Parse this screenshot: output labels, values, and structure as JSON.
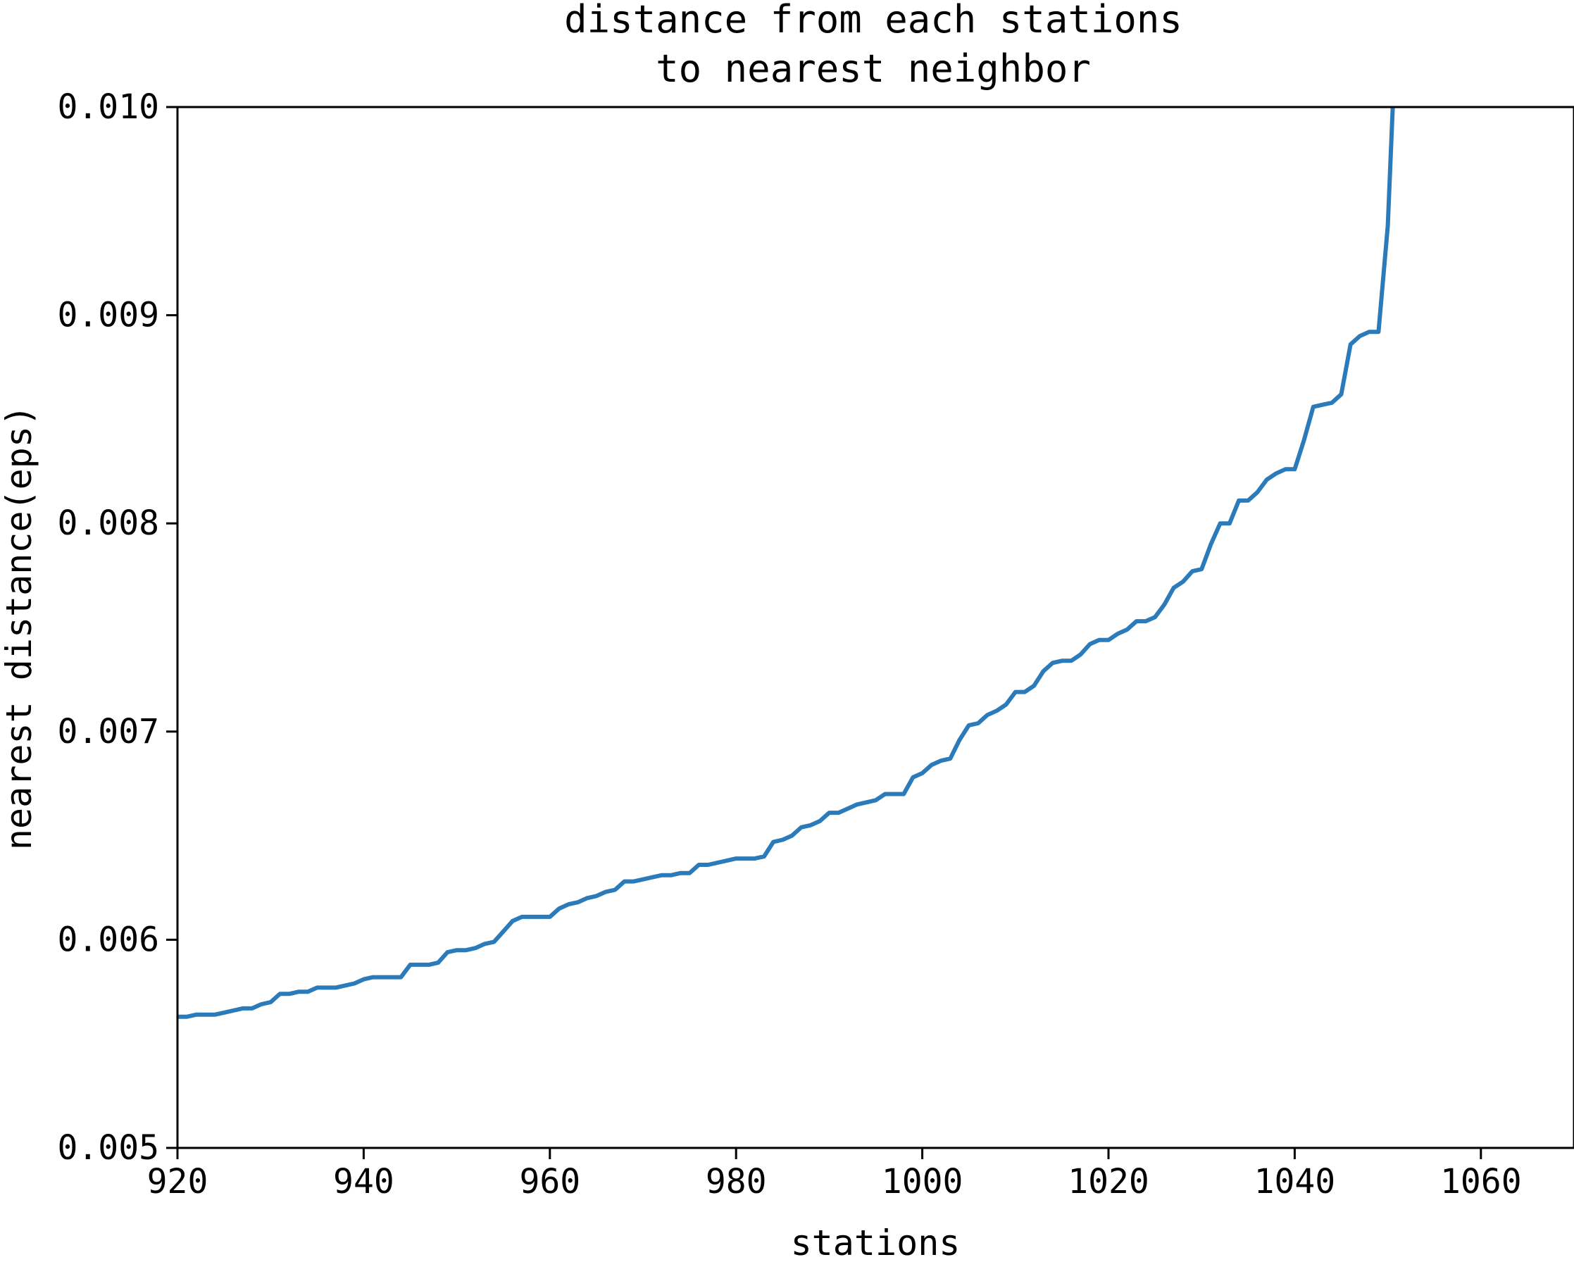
{
  "chart_data": {
    "type": "line",
    "title_lines": [
      "distance from each stations",
      "to nearest neighbor"
    ],
    "xlabel": "stations",
    "ylabel": "nearest distance(eps)",
    "xlim": [
      920,
      1070
    ],
    "ylim": [
      0.005,
      0.01
    ],
    "xticks": [
      920,
      940,
      960,
      980,
      1000,
      1020,
      1040,
      1060
    ],
    "xtick_labels": [
      "920",
      "940",
      "960",
      "980",
      "1000",
      "1020",
      "1040",
      "1060"
    ],
    "yticks": [
      0.005,
      0.006,
      0.007,
      0.008,
      0.009,
      0.01
    ],
    "ytick_labels": [
      "0.005",
      "0.006",
      "0.007",
      "0.008",
      "0.009",
      "0.010"
    ],
    "grid": false,
    "line_color": "#2b7bba",
    "series": [
      {
        "x": [
          920,
          921,
          922,
          923,
          924,
          925,
          926,
          927,
          928,
          929,
          930,
          931,
          932,
          933,
          934,
          935,
          936,
          937,
          938,
          939,
          940,
          941,
          942,
          943,
          944,
          945,
          946,
          947,
          948,
          949,
          950,
          951,
          952,
          953,
          954,
          955,
          956,
          957,
          958,
          959,
          960,
          961,
          962,
          963,
          964,
          965,
          966,
          967,
          968,
          969,
          970,
          971,
          972,
          973,
          974,
          975,
          976,
          977,
          978,
          979,
          980,
          981,
          982,
          983,
          984,
          985,
          986,
          987,
          988,
          989,
          990,
          991,
          992,
          993,
          994,
          995,
          996,
          997,
          998,
          999,
          1000,
          1001,
          1002,
          1003,
          1004,
          1005,
          1006,
          1007,
          1008,
          1009,
          1010,
          1011,
          1012,
          1013,
          1014,
          1015,
          1016,
          1017,
          1018,
          1019,
          1020,
          1021,
          1022,
          1023,
          1024,
          1025,
          1026,
          1027,
          1028,
          1029,
          1030,
          1031,
          1032,
          1033,
          1034,
          1035,
          1036,
          1037,
          1038,
          1039,
          1040,
          1041,
          1042,
          1043,
          1044,
          1045,
          1046,
          1047,
          1048,
          1049,
          1050,
          1051
        ],
        "values": [
          0.00563,
          0.00563,
          0.00564,
          0.00564,
          0.00564,
          0.00565,
          0.00566,
          0.00567,
          0.00567,
          0.00569,
          0.0057,
          0.00574,
          0.00574,
          0.00575,
          0.00575,
          0.00577,
          0.00577,
          0.00577,
          0.00578,
          0.00579,
          0.00581,
          0.00582,
          0.00582,
          0.00582,
          0.00582,
          0.00588,
          0.00588,
          0.00588,
          0.00589,
          0.00594,
          0.00595,
          0.00595,
          0.00596,
          0.00598,
          0.00599,
          0.00604,
          0.00609,
          0.00611,
          0.00611,
          0.00611,
          0.00611,
          0.00615,
          0.00617,
          0.00618,
          0.0062,
          0.00621,
          0.00623,
          0.00624,
          0.00628,
          0.00628,
          0.00629,
          0.0063,
          0.00631,
          0.00631,
          0.00632,
          0.00632,
          0.00636,
          0.00636,
          0.00637,
          0.00638,
          0.00639,
          0.00639,
          0.00639,
          0.0064,
          0.00647,
          0.00648,
          0.0065,
          0.00654,
          0.00655,
          0.00657,
          0.00661,
          0.00661,
          0.00663,
          0.00665,
          0.00666,
          0.00667,
          0.0067,
          0.0067,
          0.0067,
          0.00678,
          0.0068,
          0.00684,
          0.00686,
          0.00687,
          0.00696,
          0.00703,
          0.00704,
          0.00708,
          0.0071,
          0.00713,
          0.00719,
          0.00719,
          0.00722,
          0.00729,
          0.00733,
          0.00734,
          0.00734,
          0.00737,
          0.00742,
          0.00744,
          0.00744,
          0.00747,
          0.00749,
          0.00753,
          0.00753,
          0.00755,
          0.00761,
          0.00769,
          0.00772,
          0.00777,
          0.00778,
          0.0079,
          0.008,
          0.008,
          0.00811,
          0.00811,
          0.00815,
          0.00821,
          0.00824,
          0.00826,
          0.00826,
          0.0084,
          0.00856,
          0.00857,
          0.00858,
          0.00862,
          0.00886,
          0.0089,
          0.00892,
          0.00892,
          0.00943,
          0.0105
        ]
      }
    ]
  }
}
